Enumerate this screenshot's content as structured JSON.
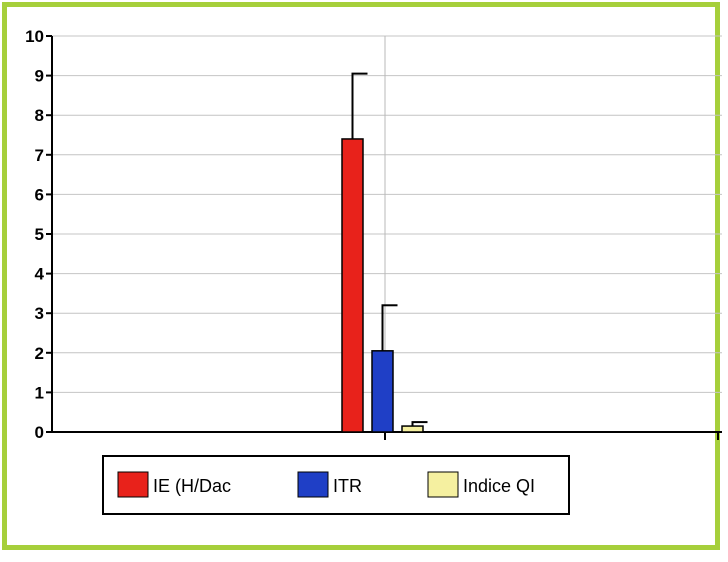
{
  "chart_data": {
    "type": "bar",
    "categories": [
      ""
    ],
    "series": [
      {
        "name": "IE (H/Dac",
        "values": [
          7.4
        ],
        "error": [
          1.65
        ],
        "color": "#e8221b"
      },
      {
        "name": "ITR",
        "values": [
          2.05
        ],
        "error": [
          1.15
        ],
        "color": "#1f3fc6"
      },
      {
        "name": "Indice QI",
        "values": [
          0.15
        ],
        "error": [
          0.1
        ],
        "color": "#f5f0a0"
      }
    ],
    "ylim": [
      0,
      10
    ],
    "yticks": [
      "0",
      "1",
      "2",
      "3",
      "4",
      "5",
      "6",
      "7",
      "8",
      "9",
      "10"
    ],
    "grid": true,
    "legend_position": "bottom",
    "title": "",
    "xlabel": "",
    "ylabel": ""
  }
}
